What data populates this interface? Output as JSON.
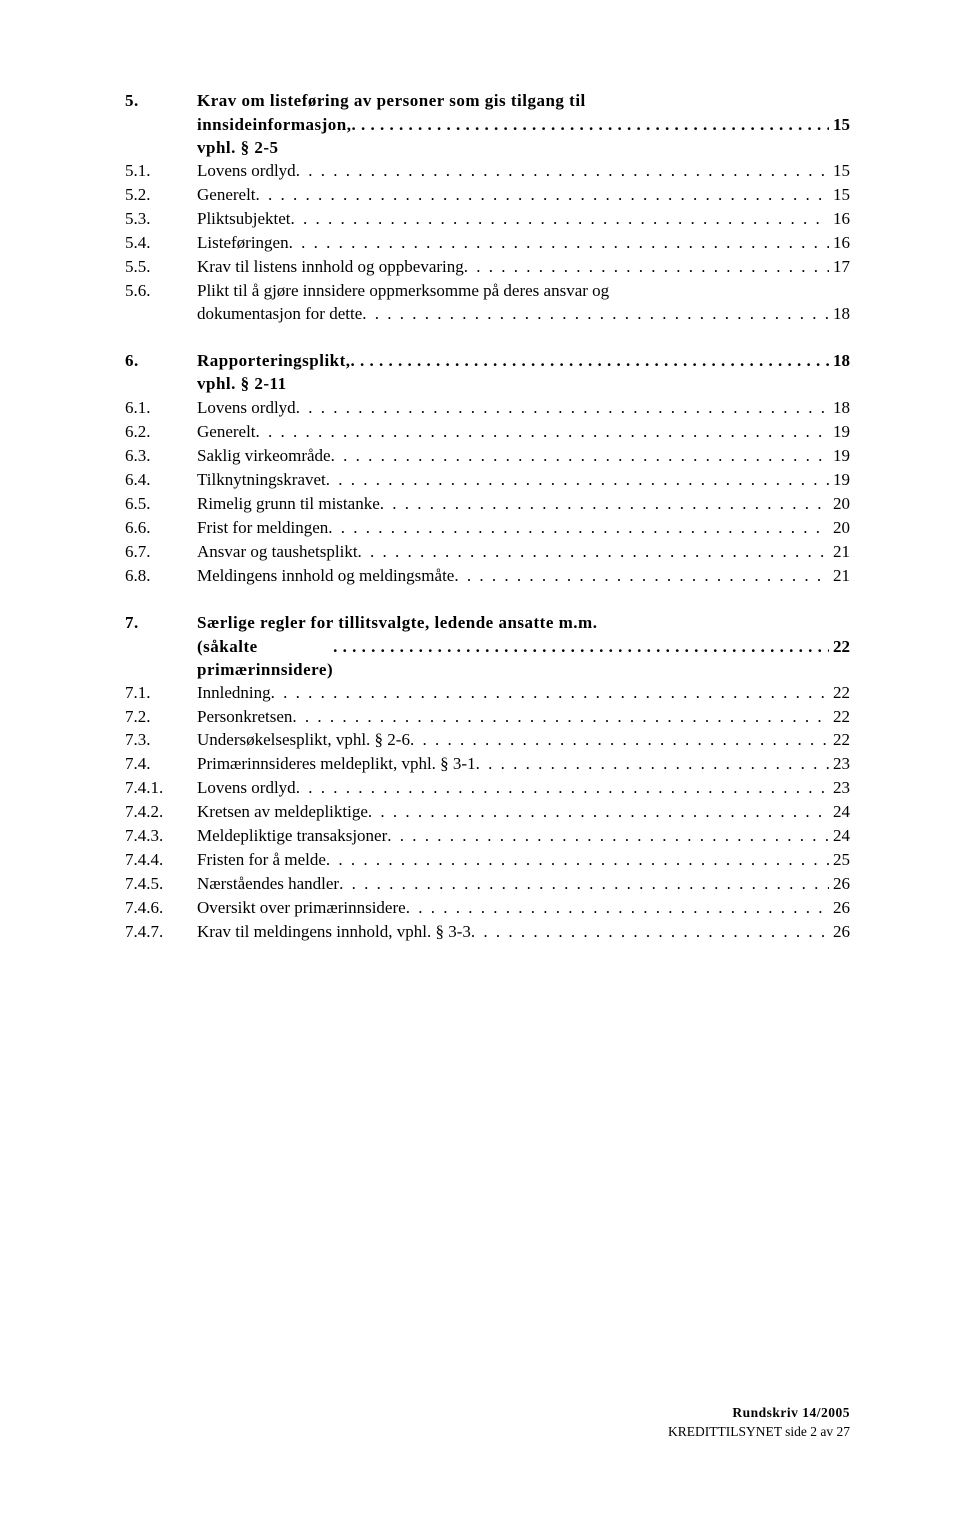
{
  "sections": [
    {
      "num": "5.",
      "head_lines": [
        "Krav om listeføring av personer som gis tilgang til",
        "innsideinformasjon, vphl. § 2-5"
      ],
      "head_pg": "15",
      "items": [
        {
          "num": "5.1.",
          "text": "Lovens ordlyd",
          "pg": "15"
        },
        {
          "num": "5.2.",
          "text": "Generelt",
          "pg": "15"
        },
        {
          "num": "5.3.",
          "text": "Pliktsubjektet",
          "pg": "16"
        },
        {
          "num": "5.4.",
          "text": "Listeføringen",
          "pg": "16"
        },
        {
          "num": "5.5.",
          "text": "Krav til listens innhold og oppbevaring",
          "pg": "17"
        },
        {
          "num": "5.6.",
          "lines": [
            "Plikt til å gjøre innsidere oppmerksomme på deres ansvar og",
            "dokumentasjon for dette"
          ],
          "pg": "18"
        }
      ]
    },
    {
      "num": "6.",
      "head_lines": [
        "Rapporteringsplikt, vphl. § 2-11"
      ],
      "head_pg": "18",
      "items": [
        {
          "num": "6.1.",
          "text": "Lovens ordlyd",
          "pg": "18"
        },
        {
          "num": "6.2.",
          "text": "Generelt",
          "pg": "19"
        },
        {
          "num": "6.3.",
          "text": "Saklig virkeområde",
          "pg": "19"
        },
        {
          "num": "6.4.",
          "text": "Tilknytningskravet",
          "pg": "19"
        },
        {
          "num": "6.5.",
          "text": "Rimelig grunn til mistanke",
          "pg": "20"
        },
        {
          "num": "6.6.",
          "text": "Frist for meldingen",
          "pg": "20"
        },
        {
          "num": "6.7.",
          "text": "Ansvar og taushetsplikt",
          "pg": "21"
        },
        {
          "num": "6.8.",
          "text": "Meldingens innhold og meldingsmåte",
          "pg": "21"
        }
      ]
    },
    {
      "num": "7.",
      "head_lines": [
        "Særlige regler for tillitsvalgte, ledende ansatte m.m.",
        "(såkalte primærinnsidere)"
      ],
      "head_pg": "22",
      "items": [
        {
          "num": "7.1.",
          "text": "Innledning",
          "pg": "22"
        },
        {
          "num": "7.2.",
          "text": "Personkretsen",
          "pg": "22"
        },
        {
          "num": "7.3.",
          "text": "Undersøkelsesplikt, vphl. § 2-6",
          "pg": "22"
        },
        {
          "num": "7.4.",
          "text": "Primærinnsideres meldeplikt, vphl. § 3-1",
          "pg": "23"
        },
        {
          "num": "7.4.1.",
          "text": "Lovens ordlyd",
          "pg": "23"
        },
        {
          "num": "7.4.2.",
          "text": "Kretsen av meldepliktige",
          "pg": "24"
        },
        {
          "num": "7.4.3.",
          "text": "Meldepliktige transaksjoner",
          "pg": "24"
        },
        {
          "num": "7.4.4.",
          "text": "Fristen for å melde",
          "pg": "25"
        },
        {
          "num": "7.4.5.",
          "text": "Nærståendes handler",
          "pg": "26"
        },
        {
          "num": "7.4.6.",
          "text": "Oversikt over primærinnsidere",
          "pg": "26"
        },
        {
          "num": "7.4.7.",
          "text": "Krav til meldingens innhold, vphl. § 3-3",
          "pg": "26"
        }
      ]
    }
  ],
  "footer": {
    "line1": "Rundskriv 14/2005",
    "line2": "KREDITTILSYNET side 2 av 27"
  }
}
